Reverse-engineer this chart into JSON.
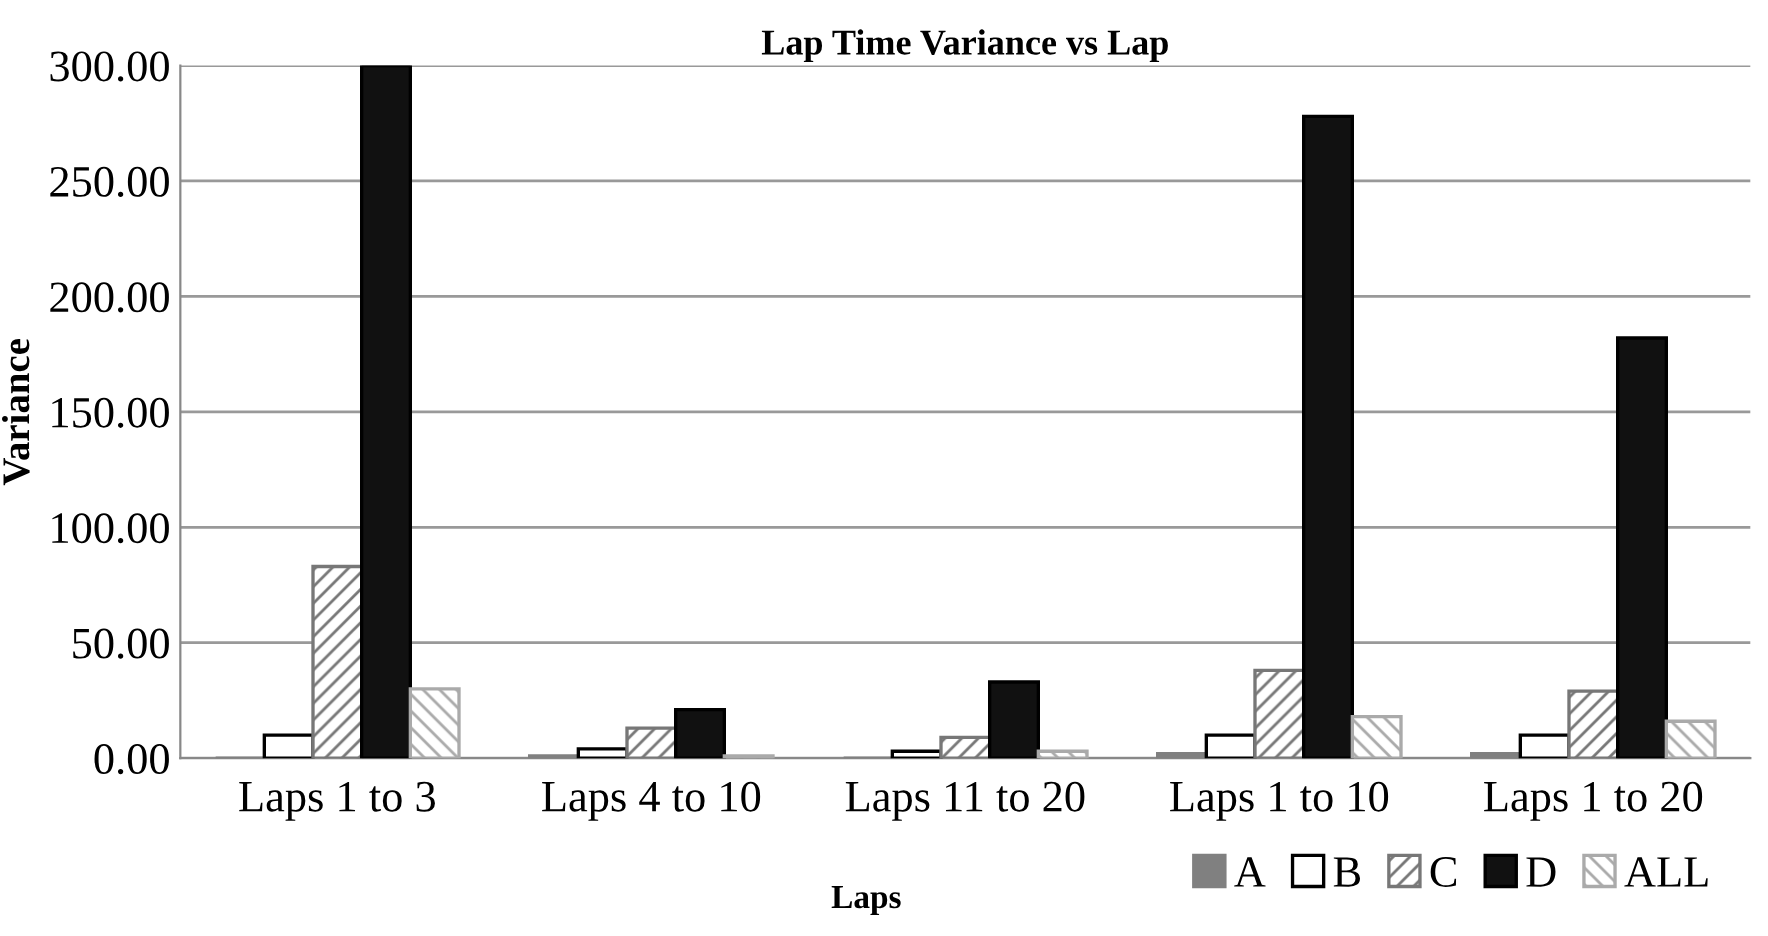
{
  "chart_data": {
    "type": "bar",
    "title": "Lap Time Variance vs Lap",
    "xlabel": "Laps",
    "ylabel": "Variance",
    "categories": [
      "Laps 1 to 3",
      "Laps 4 to 10",
      "Laps 11 to 20",
      "Laps 1 to 10",
      "Laps 1 to 20"
    ],
    "series": [
      {
        "name": "A",
        "color": "#808080",
        "values": [
          0,
          1,
          0,
          2,
          2
        ]
      },
      {
        "name": "B",
        "color": "#ffffff",
        "values": [
          10,
          4,
          3,
          10,
          10
        ]
      },
      {
        "name": "C",
        "color": "#777777",
        "values": [
          83,
          13,
          9,
          38,
          29
        ]
      },
      {
        "name": "D",
        "color": "#111111",
        "values": [
          300,
          21,
          33,
          278,
          182
        ]
      },
      {
        "name": "ALL",
        "color": "#aaaaaa",
        "values": [
          30,
          1,
          3,
          18,
          16
        ]
      }
    ],
    "ylim": [
      0,
      300
    ],
    "yticks": [
      {
        "value": 0,
        "label": "0.00"
      },
      {
        "value": 50,
        "label": "50.00"
      },
      {
        "value": 100,
        "label": "100.00"
      },
      {
        "value": 150,
        "label": "150.00"
      },
      {
        "value": 200,
        "label": "200.00"
      },
      {
        "value": 250,
        "label": "250.00"
      },
      {
        "value": 300,
        "label": "300.00"
      }
    ],
    "grid": "y",
    "legend": "bottom right"
  }
}
